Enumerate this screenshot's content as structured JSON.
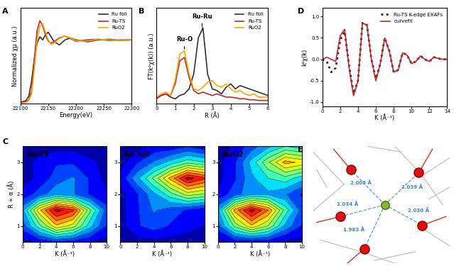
{
  "chart_data": [
    {
      "panel": "A",
      "type": "line",
      "xlabel": "Energy(eV)",
      "ylabel": "Normalized χμ (a.u.)",
      "x": [
        22100,
        22110,
        22115,
        22120,
        22125,
        22130,
        22135,
        22140,
        22145,
        22150,
        22155,
        22160,
        22170,
        22180,
        22190,
        22200,
        22220,
        22240,
        22260,
        22280,
        22300
      ],
      "series": [
        {
          "name": "Ru foil",
          "color": "#333333",
          "line_style": "solid",
          "values": [
            0.02,
            0.05,
            0.12,
            0.35,
            0.7,
            0.95,
            1.05,
            1.0,
            1.08,
            1.12,
            1.05,
            0.98,
            0.92,
            1.0,
            1.03,
            1.0,
            0.97,
            1.0,
            1.01,
            0.99,
            1.0
          ]
        },
        {
          "name": "Ru-TS",
          "color": "#c0272d",
          "line_style": "solid",
          "values": [
            0.01,
            0.03,
            0.06,
            0.2,
            0.7,
            1.15,
            1.3,
            1.22,
            1.08,
            0.98,
            0.95,
            0.97,
            1.03,
            1.06,
            1.02,
            0.98,
            1.0,
            1.01,
            0.99,
            1.0,
            1.0
          ]
        },
        {
          "name": "RuO2",
          "color": "#f2a900",
          "line_style": "solid",
          "values": [
            0.01,
            0.02,
            0.05,
            0.15,
            0.55,
            1.0,
            1.22,
            1.25,
            1.12,
            1.0,
            0.93,
            0.95,
            1.02,
            1.06,
            1.03,
            0.99,
            0.98,
            1.01,
            1.0,
            0.99,
            1.0
          ]
        }
      ],
      "xlim": [
        22100,
        22300
      ],
      "xticks": [
        22100,
        22150,
        22200,
        22250,
        22300
      ],
      "ylim": [
        0,
        1.5
      ],
      "tick_labels": "x",
      "legend": "upper right"
    },
    {
      "panel": "B",
      "type": "line",
      "xlabel": "R (Å)",
      "ylabel": "FT(k²χ(k)) (a.u.)",
      "x": [
        0,
        0.25,
        0.5,
        0.75,
        1.0,
        1.25,
        1.5,
        1.75,
        2.0,
        2.25,
        2.5,
        2.75,
        3.0,
        3.25,
        3.5,
        3.75,
        4.0,
        4.25,
        4.5,
        4.75,
        5.0,
        5.25,
        5.5,
        5.75,
        6.0
      ],
      "series": [
        {
          "name": "Ru foil",
          "color": "#333333",
          "line_style": "solid",
          "values": [
            0.2,
            0.25,
            0.3,
            0.2,
            0.15,
            0.25,
            0.3,
            0.45,
            0.9,
            2.0,
            2.3,
            0.9,
            0.45,
            0.4,
            0.3,
            0.5,
            0.6,
            0.45,
            0.55,
            0.5,
            0.45,
            0.4,
            0.35,
            0.3,
            0.25
          ]
        },
        {
          "name": "Ru-TS",
          "color": "#c0272d",
          "line_style": "solid",
          "values": [
            0.15,
            0.25,
            0.3,
            0.25,
            0.6,
            1.3,
            1.4,
            0.8,
            0.4,
            0.3,
            0.35,
            0.3,
            0.25,
            0.3,
            0.25,
            0.2,
            0.2,
            0.18,
            0.15,
            0.15,
            0.12,
            0.12,
            0.1,
            0.1,
            0.1
          ]
        },
        {
          "name": "RuO2",
          "color": "#f2a900",
          "line_style": "solid",
          "values": [
            0.2,
            0.3,
            0.35,
            0.25,
            0.7,
            1.5,
            1.6,
            0.9,
            0.45,
            0.4,
            0.5,
            0.65,
            0.7,
            0.55,
            0.5,
            0.6,
            0.45,
            0.35,
            0.4,
            0.3,
            0.25,
            0.3,
            0.2,
            0.2,
            0.2
          ]
        }
      ],
      "annotations": [
        {
          "text": "Ru-O",
          "x": 1.5,
          "y": 1.85
        },
        {
          "text": "Ru-Ru",
          "x": 2.45,
          "y": 2.55
        }
      ],
      "xlim": [
        0,
        6
      ],
      "xticks": [
        0,
        1,
        2,
        3,
        4,
        5,
        6
      ],
      "ylim": [
        0,
        2.9
      ],
      "tick_labels": "x",
      "legend": "upper right"
    },
    {
      "panel": "C",
      "type": "heatmap",
      "xlabel": "K (Å⁻¹)",
      "ylabel": "R + α (Å)",
      "x": [
        0,
        2,
        4,
        6,
        8,
        10
      ],
      "y": [
        0.5,
        1.0,
        1.5,
        2.0,
        2.5,
        3.0,
        3.5
      ],
      "xlim": [
        0,
        10
      ],
      "ylim": [
        0.5,
        3.5
      ],
      "xticks": [
        0,
        2,
        4,
        6,
        8,
        10
      ],
      "yticks": [
        1,
        2,
        3
      ],
      "maps": [
        {
          "name": "Ru-TS",
          "cells": [
            [
              0.05,
              0.1,
              0.15,
              0.12,
              0.08,
              0.05
            ],
            [
              0.2,
              0.45,
              0.7,
              0.6,
              0.35,
              0.15
            ],
            [
              0.3,
              0.7,
              1.0,
              0.9,
              0.5,
              0.2
            ],
            [
              0.1,
              0.2,
              0.3,
              0.25,
              0.15,
              0.08
            ],
            [
              0.05,
              0.1,
              0.2,
              0.25,
              0.15,
              0.05
            ],
            [
              0.05,
              0.1,
              0.15,
              0.15,
              0.1,
              0.05
            ],
            [
              0.02,
              0.05,
              0.05,
              0.05,
              0.03,
              0.02
            ]
          ]
        },
        {
          "name": "Ru foil",
          "cells": [
            [
              0.02,
              0.05,
              0.05,
              0.05,
              0.05,
              0.03
            ],
            [
              0.05,
              0.15,
              0.2,
              0.15,
              0.1,
              0.08
            ],
            [
              0.05,
              0.15,
              0.25,
              0.2,
              0.15,
              0.1
            ],
            [
              0.05,
              0.15,
              0.3,
              0.45,
              0.6,
              0.55
            ],
            [
              0.1,
              0.3,
              0.5,
              0.75,
              1.0,
              0.9
            ],
            [
              0.05,
              0.15,
              0.25,
              0.35,
              0.45,
              0.4
            ],
            [
              0.02,
              0.05,
              0.1,
              0.1,
              0.15,
              0.1
            ]
          ]
        },
        {
          "name": "RuO2",
          "cells": [
            [
              0.05,
              0.1,
              0.1,
              0.1,
              0.05,
              0.05
            ],
            [
              0.2,
              0.5,
              0.7,
              0.55,
              0.3,
              0.15
            ],
            [
              0.3,
              0.75,
              1.0,
              0.8,
              0.45,
              0.2
            ],
            [
              0.1,
              0.2,
              0.3,
              0.3,
              0.25,
              0.15
            ],
            [
              0.05,
              0.15,
              0.3,
              0.4,
              0.45,
              0.35
            ],
            [
              0.05,
              0.15,
              0.35,
              0.55,
              0.75,
              0.7
            ],
            [
              0.02,
              0.1,
              0.2,
              0.3,
              0.4,
              0.35
            ]
          ]
        }
      ]
    },
    {
      "panel": "D",
      "type": "line",
      "xlabel": "K (Å⁻¹)",
      "ylabel": "k²χ(k)",
      "x": [
        0,
        0.5,
        1.0,
        1.5,
        2.0,
        2.5,
        3.0,
        3.5,
        4.0,
        4.5,
        5.0,
        5.5,
        6.0,
        6.5,
        7.0,
        7.5,
        8.0,
        8.5,
        9.0,
        9.5,
        10.0,
        10.5,
        11.0,
        11.5,
        12.0,
        12.5,
        13.0,
        13.5,
        14.0
      ],
      "series": [
        {
          "name": "Ru-TS K-edge EXAFs",
          "color": "#4a1010",
          "line_style": "dotted",
          "values": [
            0,
            -0.05,
            -0.3,
            -0.2,
            0.45,
            0.65,
            -0.15,
            -0.8,
            -0.5,
            0.85,
            0.8,
            0.0,
            -0.45,
            -0.1,
            0.5,
            0.2,
            -0.3,
            -0.25,
            0.15,
            0.1,
            -0.1,
            -0.05,
            0.08,
            0.0,
            -0.05,
            0.05,
            0.02,
            0.0,
            0.0
          ]
        },
        {
          "name": "curvefit",
          "color": "#c0272d",
          "line_style": "solid",
          "values": [
            0,
            0.05,
            0.0,
            -0.05,
            0.55,
            0.7,
            -0.2,
            -0.85,
            -0.5,
            0.85,
            0.8,
            0.0,
            -0.5,
            -0.1,
            0.5,
            0.2,
            -0.3,
            -0.25,
            0.15,
            0.1,
            -0.1,
            -0.05,
            0.08,
            0.0,
            -0.05,
            0.05,
            0.02,
            0.0,
            0.0
          ]
        }
      ],
      "xlim": [
        0,
        14
      ],
      "xticks": [
        0,
        2,
        4,
        6,
        8,
        10,
        12,
        14
      ],
      "ylim": [
        -1.1,
        1.2
      ],
      "yticks": [
        {
          "value": -1.0,
          "label": "-1.0"
        },
        {
          "value": -0.5,
          "label": "-0.5"
        },
        {
          "value": 0.0,
          "label": "0.0"
        },
        {
          "value": 0.5,
          "label": "0.5"
        },
        {
          "value": 1.0,
          "label": "1.0"
        }
      ],
      "legend": "upper right"
    },
    {
      "panel": "E",
      "type": "structure",
      "bond_lengths": [
        "2.005 Å",
        "2.039 Å",
        "2.034 Å",
        "2.030 Å",
        "1.983 Å"
      ]
    }
  ]
}
